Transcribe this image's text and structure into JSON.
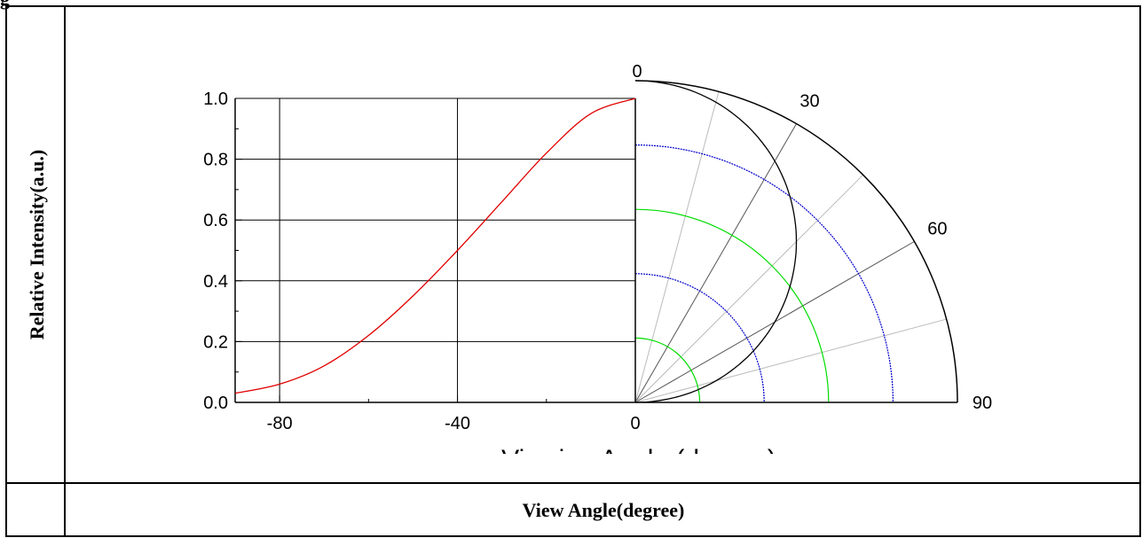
{
  "corner_text": "g",
  "y_axis_title": "Relative Intensity(a.u.)",
  "x_axis_title_clipped": "Viewing Angle (degree)",
  "table_caption": "View Angle(degree)",
  "colors": {
    "curve": "#e00000",
    "polar_pattern": "#000000",
    "ring_blue": "#0000cc",
    "ring_green": "#00dd00",
    "spoke_dark": "#555555",
    "spoke_light": "#bbbbbb"
  },
  "chart_data": {
    "type": "line",
    "title": "",
    "xlabel": "Viewing Angle (degree)",
    "ylabel": "",
    "xlim": [
      -90,
      0
    ],
    "ylim": [
      0,
      1.0
    ],
    "x_ticks": [
      "-80",
      "-40",
      "0"
    ],
    "y_ticks": [
      "0.0",
      "0.2",
      "0.4",
      "0.6",
      "0.8",
      "1.0"
    ],
    "grid": true,
    "series": [
      {
        "x": [
          -90,
          -80,
          -70,
          -60,
          -50,
          -40,
          -30,
          -20,
          -10,
          0
        ],
        "y": [
          0.03,
          0.06,
          0.12,
          0.22,
          0.35,
          0.5,
          0.66,
          0.82,
          0.95,
          1.0
        ]
      }
    ],
    "polar": {
      "angle_labels": [
        "0",
        "30",
        "60",
        "90"
      ],
      "ring_values": [
        0.2,
        0.4,
        0.6,
        0.8,
        1.0
      ],
      "spoke_angles": [
        15,
        30,
        45,
        60,
        75
      ],
      "pattern": "cosine"
    }
  }
}
